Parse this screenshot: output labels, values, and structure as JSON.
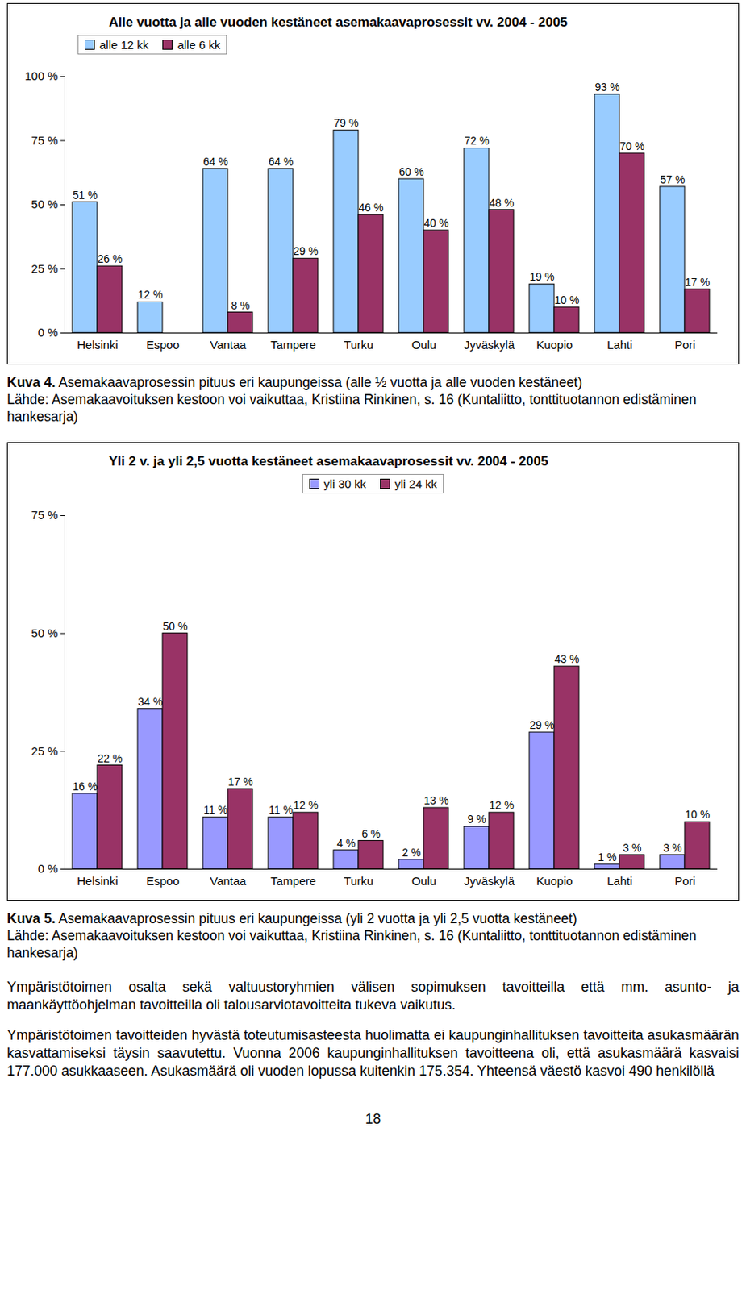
{
  "chart_data": [
    {
      "type": "bar",
      "title": "Alle  vuotta ja alle vuoden kestäneet asemakaavaprosessit vv. 2004 - 2005",
      "categories": [
        "Helsinki",
        "Espoo",
        "Vantaa",
        "Tampere",
        "Turku",
        "Oulu",
        "Jyväskylä",
        "Kuopio",
        "Lahti",
        "Pori"
      ],
      "series": [
        {
          "name": "alle 12 kk",
          "color": "#99CCFF",
          "values": [
            51,
            12,
            64,
            64,
            79,
            60,
            72,
            19,
            93,
            57
          ],
          "value_labels": [
            "51 %",
            "12 %",
            "64 %",
            "64 %",
            "79 %",
            "60 %",
            "72 %",
            "19 %",
            "93 %",
            "57 %"
          ]
        },
        {
          "name": "alle 6 kk",
          "color": "#993366",
          "values": [
            26,
            null,
            8,
            29,
            46,
            40,
            48,
            10,
            70,
            17
          ],
          "value_labels": [
            "26 %",
            null,
            "8 %",
            "29 %",
            "46 %",
            "40 %",
            "48 %",
            "10 %",
            "70 %",
            "17 %"
          ]
        }
      ],
      "ylim": [
        0,
        100
      ],
      "yticks": [
        {
          "value": 0,
          "label": "0 %"
        },
        {
          "value": 25,
          "label": "25 %"
        },
        {
          "value": 50,
          "label": "50 %"
        },
        {
          "value": 75,
          "label": "75 %"
        },
        {
          "value": 100,
          "label": "100 %"
        }
      ],
      "grid": false,
      "legend": "top left",
      "data_labels": true
    },
    {
      "type": "bar",
      "title": "Yli 2 v. ja yli 2,5 vuotta kestäneet asemakaavaprosessit vv. 2004 - 2005",
      "categories": [
        "Helsinki",
        "Espoo",
        "Vantaa",
        "Tampere",
        "Turku",
        "Oulu",
        "Jyväskylä",
        "Kuopio",
        "Lahti",
        "Pori"
      ],
      "series": [
        {
          "name": "yli 30 kk",
          "color": "#9999FF",
          "values": [
            16,
            34,
            11,
            11,
            4,
            2,
            9,
            29,
            1,
            3
          ],
          "value_labels": [
            "16 %",
            "34 %",
            "11 %",
            "11 %",
            "4 %",
            "2 %",
            "9 %",
            "29 %",
            "1 %",
            "3 %"
          ]
        },
        {
          "name": "yli 24 kk",
          "color": "#993366",
          "values": [
            22,
            50,
            17,
            12,
            6,
            13,
            12,
            43,
            3,
            10
          ],
          "value_labels": [
            "22 %",
            "50 %",
            "17 %",
            "12 %",
            "6 %",
            "13 %",
            "12 %",
            "43 %",
            "3 %",
            "10 %"
          ]
        }
      ],
      "ylim": [
        0,
        75
      ],
      "yticks": [
        {
          "value": 0,
          "label": "0 %"
        },
        {
          "value": 25,
          "label": "25 %"
        },
        {
          "value": 50,
          "label": "50 %"
        },
        {
          "value": 75,
          "label": "75 %"
        }
      ],
      "grid": false,
      "legend": "top",
      "data_labels": true
    }
  ],
  "captions": [
    {
      "label": "Kuva 4.",
      "text": "Asemakaavaprosessin pituus eri kaupungeissa (alle ½ vuotta ja alle vuoden kestäneet)",
      "source": "Lähde: Asemakaavoituksen kestoon voi vaikuttaa, Kristiina Rinkinen, s. 16 (Kuntaliitto, tonttituotannon edistäminen hankesarja)"
    },
    {
      "label": "Kuva 5.",
      "text": "Asemakaavaprosessin pituus eri kaupungeissa (yli 2 vuotta ja yli 2,5 vuotta kestäneet)",
      "source": "Lähde: Asemakaavoituksen kestoon voi vaikuttaa, Kristiina Rinkinen, s. 16 (Kuntaliitto, tonttituotannon edistäminen hankesarja)"
    }
  ],
  "paragraphs": [
    "Ympäristötoimen osalta sekä valtuustoryhmien välisen sopimuksen tavoitteilla että mm. asunto- ja maankäyttöohjelman tavoitteilla oli talousarviotavoitteita tukeva vaikutus.",
    "Ympäristötoimen tavoitteiden hyvästä toteutumisasteesta huolimatta ei kaupunginhallituksen tavoitteita asukasmäärän kasvattamiseksi täysin saavutettu. Vuonna 2006 kaupunginhallituksen tavoitteena oli, että asukasmäärä kasvaisi 177.000 asukkaaseen. Asukasmäärä oli vuoden lopussa kuitenkin 175.354. Yhteensä väestö kasvoi 490 henkilöllä"
  ],
  "page_number": "18"
}
